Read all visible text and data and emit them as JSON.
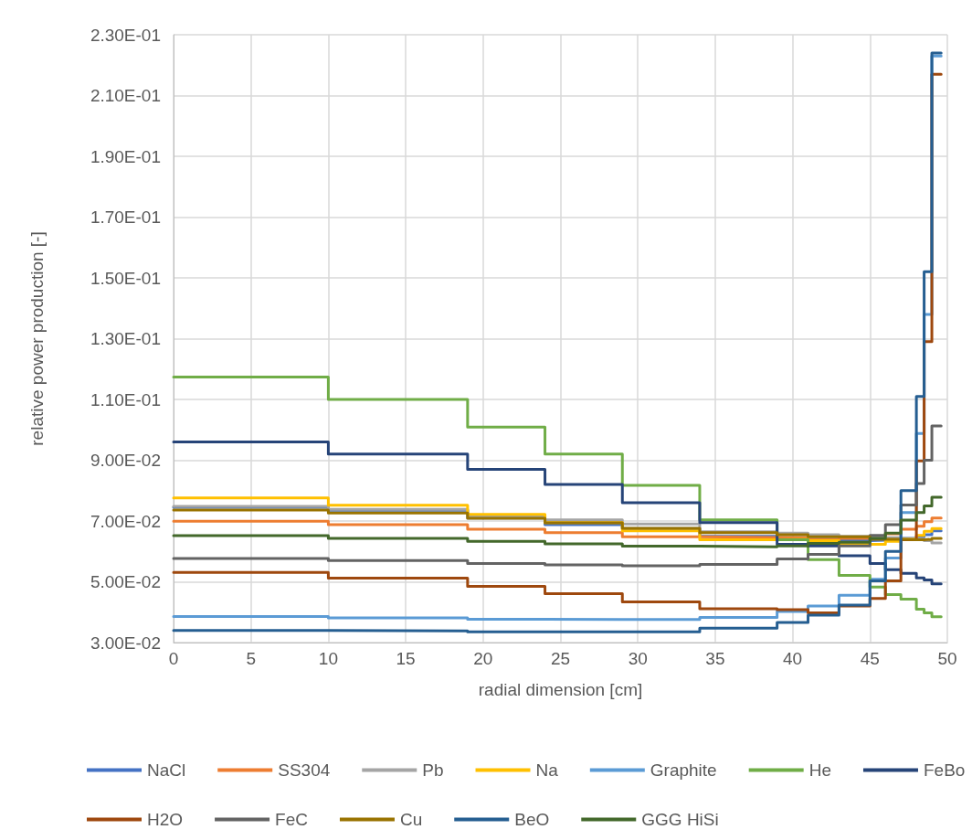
{
  "chart_data": {
    "type": "step",
    "xlabel": "radial dimension [cm]",
    "ylabel": "relative power production [-]",
    "x": [
      0,
      10,
      19,
      24,
      29,
      34,
      39,
      41,
      43,
      45,
      46,
      47,
      48,
      48.5,
      49,
      49.6
    ],
    "xlim": [
      0,
      50
    ],
    "xticks": [
      0,
      5,
      10,
      15,
      20,
      25,
      30,
      35,
      40,
      45,
      50
    ],
    "ylim": [
      0.03,
      0.23
    ],
    "yticks": [
      {
        "value": 0.03,
        "label": "3.00E-02"
      },
      {
        "value": 0.05,
        "label": "5.00E-02"
      },
      {
        "value": 0.07,
        "label": "7.00E-02"
      },
      {
        "value": 0.09,
        "label": "9.00E-02"
      },
      {
        "value": 0.11,
        "label": "1.10E-01"
      },
      {
        "value": 0.13,
        "label": "1.30E-01"
      },
      {
        "value": 0.15,
        "label": "1.50E-01"
      },
      {
        "value": 0.17,
        "label": "1.70E-01"
      },
      {
        "value": 0.19,
        "label": "1.90E-01"
      },
      {
        "value": 0.21,
        "label": "2.10E-01"
      },
      {
        "value": 0.23,
        "label": "2.30E-01"
      }
    ],
    "grid": true,
    "legend": "bottom",
    "marker": "none",
    "line_style": "solid",
    "series": [
      {
        "name": "NaCl",
        "color": "#4472c4",
        "values": [
          0.0745,
          0.0735,
          0.071,
          0.0688,
          0.0675,
          0.065,
          0.0645,
          0.064,
          0.0635,
          0.0637,
          0.064,
          0.0643,
          0.0648,
          0.0655,
          0.0668,
          0.0668
        ]
      },
      {
        "name": "SS304",
        "color": "#ed7d31",
        "values": [
          0.0699,
          0.0688,
          0.0673,
          0.0662,
          0.0648,
          0.0646,
          0.0645,
          0.0638,
          0.0643,
          0.0648,
          0.0658,
          0.0673,
          0.0683,
          0.0698,
          0.071,
          0.071
        ]
      },
      {
        "name": "Pb",
        "color": "#a5a5a5",
        "values": [
          0.0748,
          0.0738,
          0.0716,
          0.0704,
          0.069,
          0.0665,
          0.066,
          0.0655,
          0.065,
          0.0648,
          0.0645,
          0.0642,
          0.064,
          0.0635,
          0.0628,
          0.0628
        ]
      },
      {
        "name": "Na",
        "color": "#ffc000",
        "values": [
          0.0776,
          0.0752,
          0.0722,
          0.0695,
          0.0668,
          0.0638,
          0.064,
          0.0635,
          0.0623,
          0.0623,
          0.0633,
          0.064,
          0.0653,
          0.0666,
          0.0675,
          0.0675
        ]
      },
      {
        "name": "Graphite",
        "color": "#5b9bd5",
        "values": [
          0.0386,
          0.0381,
          0.0377,
          0.0376,
          0.0376,
          0.0383,
          0.0402,
          0.042,
          0.0456,
          0.0508,
          0.0578,
          0.0728,
          0.0988,
          0.138,
          0.223,
          0.223
        ]
      },
      {
        "name": "He",
        "color": "#70ad47",
        "values": [
          0.1174,
          0.11,
          0.1009,
          0.092,
          0.0817,
          0.0704,
          0.0638,
          0.0573,
          0.0521,
          0.0483,
          0.0458,
          0.0443,
          0.041,
          0.0398,
          0.0385,
          0.0385
        ]
      },
      {
        "name": "FeBo",
        "color": "#264478",
        "values": [
          0.096,
          0.092,
          0.087,
          0.082,
          0.076,
          0.0695,
          0.0623,
          0.0618,
          0.0586,
          0.056,
          0.054,
          0.0528,
          0.0513,
          0.0506,
          0.0493,
          0.0493
        ]
      },
      {
        "name": "H2O",
        "color": "#9e480e",
        "values": [
          0.0531,
          0.0512,
          0.0485,
          0.0461,
          0.0434,
          0.0411,
          0.0408,
          0.0398,
          0.042,
          0.0445,
          0.0503,
          0.0638,
          0.0898,
          0.129,
          0.217,
          0.217
        ]
      },
      {
        "name": "FeC",
        "color": "#636363",
        "values": [
          0.0577,
          0.057,
          0.056,
          0.0556,
          0.0553,
          0.0557,
          0.0575,
          0.059,
          0.0618,
          0.0653,
          0.0688,
          0.0753,
          0.0823,
          0.09,
          0.1013,
          0.1013
        ]
      },
      {
        "name": "Cu",
        "color": "#997300",
        "values": [
          0.0736,
          0.0726,
          0.0709,
          0.0694,
          0.0676,
          0.0662,
          0.0655,
          0.0648,
          0.0648,
          0.064,
          0.064,
          0.0638,
          0.0638,
          0.064,
          0.0643,
          0.0643
        ]
      },
      {
        "name": "BeO",
        "color": "#255e91",
        "values": [
          0.034,
          0.0338,
          0.0335,
          0.0335,
          0.0335,
          0.0347,
          0.0366,
          0.039,
          0.0423,
          0.0503,
          0.06,
          0.08,
          0.111,
          0.152,
          0.224,
          0.224
        ]
      },
      {
        "name": "GGG HiSi",
        "color": "#43682b",
        "values": [
          0.0652,
          0.0643,
          0.0633,
          0.0625,
          0.0617,
          0.0615,
          0.0618,
          0.0626,
          0.063,
          0.0643,
          0.066,
          0.0703,
          0.0728,
          0.075,
          0.0778,
          0.0778
        ]
      }
    ]
  }
}
